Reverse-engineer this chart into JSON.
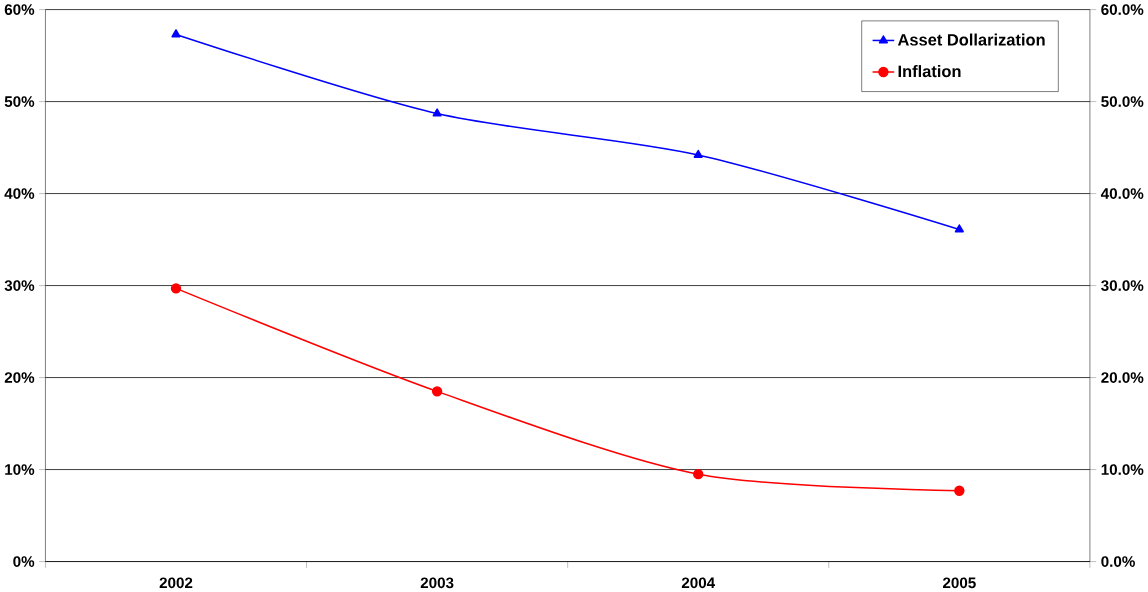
{
  "chart_data": {
    "type": "line",
    "categories": [
      "2002",
      "2003",
      "2004",
      "2005"
    ],
    "series": [
      {
        "name": "Asset Dollarization",
        "color": "#0000ff",
        "marker": "triangle",
        "values": [
          57.3,
          48.7,
          44.2,
          36.1
        ]
      },
      {
        "name": "Inflation",
        "color": "#ff0000",
        "marker": "circle",
        "values": [
          29.7,
          18.5,
          9.5,
          7.7
        ]
      }
    ],
    "ylim": [
      0,
      60
    ],
    "yticks": [
      {
        "value": 0,
        "label": "0%"
      },
      {
        "value": 10,
        "label": "10%"
      },
      {
        "value": 20,
        "label": "20%"
      },
      {
        "value": 30,
        "label": "30%"
      },
      {
        "value": 40,
        "label": "40%"
      },
      {
        "value": 50,
        "label": "50%"
      },
      {
        "value": 60,
        "label": "60%"
      }
    ],
    "y2lim": [
      0,
      60
    ],
    "y2ticks": [
      {
        "value": 0,
        "label": "0.0%"
      },
      {
        "value": 10,
        "label": "10.0%"
      },
      {
        "value": 20,
        "label": "20.0%"
      },
      {
        "value": 30,
        "label": "30.0%"
      },
      {
        "value": 40,
        "label": "40.0%"
      },
      {
        "value": 50,
        "label": "50.0%"
      },
      {
        "value": 60,
        "label": "60.0%"
      }
    ],
    "grid": "y",
    "legend": "top right",
    "line_style": "solid"
  }
}
